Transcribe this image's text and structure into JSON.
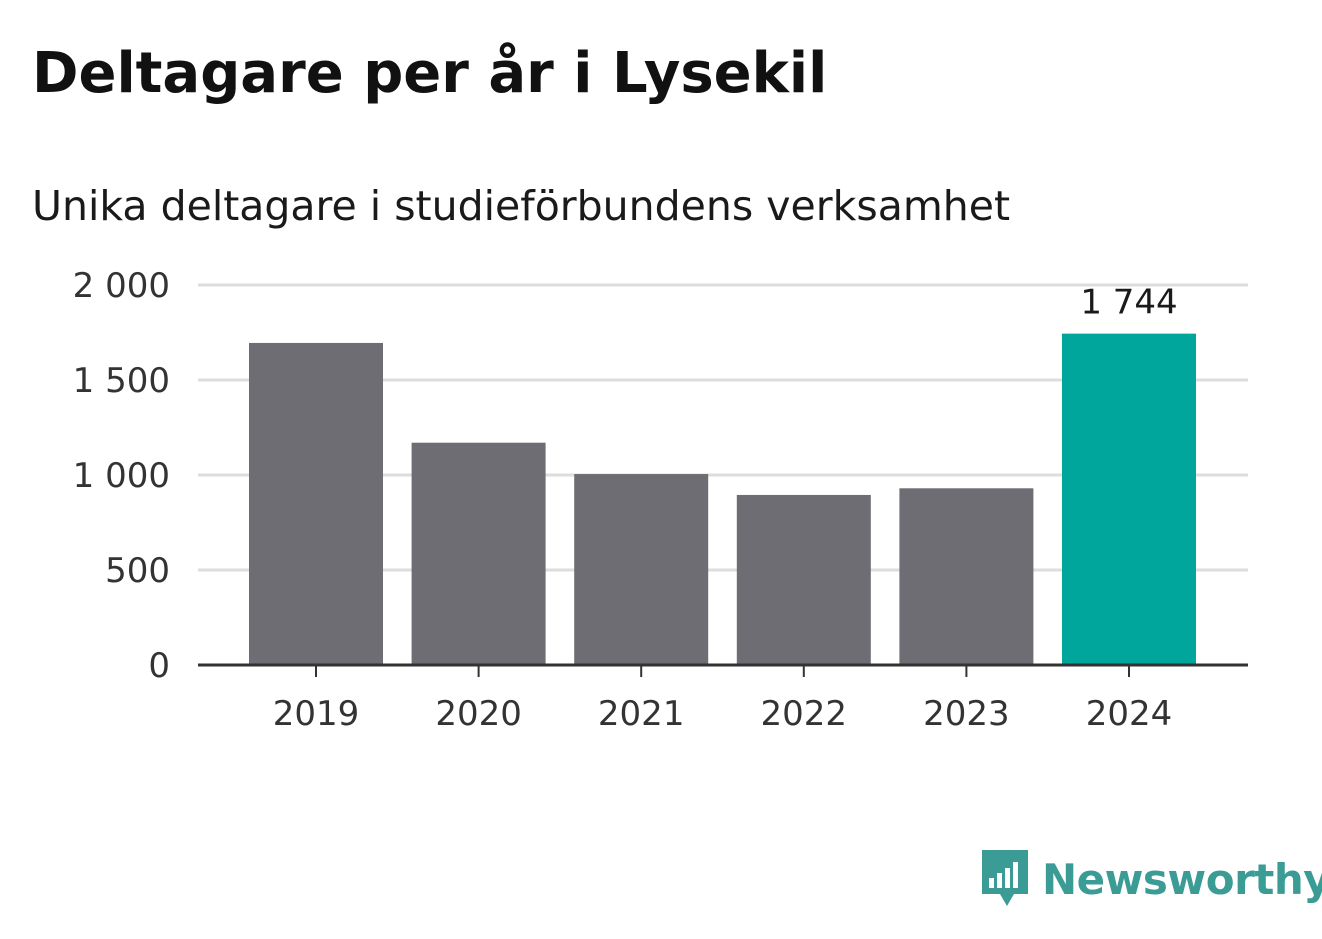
{
  "header": {
    "title": "Deltagare per år i Lysekil",
    "subtitle": "Unika deltagare i studieförbundens verksamhet"
  },
  "colors": {
    "bar_default": "#6e6d73",
    "bar_highlight": "#00a59b",
    "grid": "#dddddd",
    "axis": "#333333",
    "brand": "#3a9c95"
  },
  "chart_data": {
    "type": "bar",
    "title": "Deltagare per år i Lysekil",
    "subtitle": "Unika deltagare i studieförbundens verksamhet",
    "xlabel": "",
    "ylabel": "",
    "categories": [
      "2019",
      "2020",
      "2021",
      "2022",
      "2023",
      "2024"
    ],
    "values": [
      1695,
      1170,
      1005,
      895,
      930,
      1744
    ],
    "highlight_index": 5,
    "data_labels": [
      null,
      null,
      null,
      null,
      null,
      "1 744"
    ],
    "ylim": [
      0,
      2000
    ],
    "yticks": [
      0,
      500,
      1000,
      1500,
      2000
    ],
    "ytick_labels": [
      "0",
      "500",
      "1 000",
      "1 500",
      "2 000"
    ],
    "grid": true,
    "legend": "none"
  },
  "logo": {
    "text": "Newsworthy",
    "icon": "newsworthy-chart-icon"
  }
}
